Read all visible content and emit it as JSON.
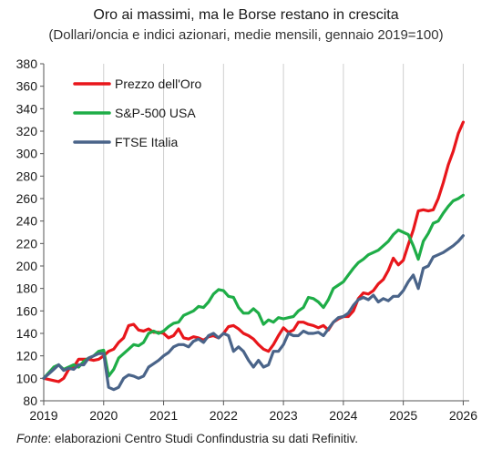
{
  "chart_data": {
    "type": "line",
    "title": "Oro ai massimi, ma le Borse restano in crescita",
    "subtitle": "(Dollari/oncia e indici azionari, medie mensili, gennaio 2019=100)",
    "xlabel": "",
    "ylabel": "",
    "ylim": [
      80,
      380
    ],
    "yticks": [
      80,
      100,
      120,
      140,
      160,
      180,
      200,
      220,
      240,
      260,
      280,
      300,
      320,
      340,
      360,
      380
    ],
    "xlim": [
      2019,
      2026.1
    ],
    "xticks": [
      "2019",
      "2020",
      "2021",
      "2022",
      "2023",
      "2024",
      "2025",
      "2026"
    ],
    "grid": "vertical",
    "legend": "top-left",
    "series": [
      {
        "name": "Prezzo dell'Oro",
        "color": "#e8161b",
        "x": [
          2019.0,
          2019.083,
          2019.167,
          2019.25,
          2019.333,
          2019.417,
          2019.5,
          2019.583,
          2019.667,
          2019.75,
          2019.833,
          2019.917,
          2020.0,
          2020.083,
          2020.167,
          2020.25,
          2020.333,
          2020.417,
          2020.5,
          2020.583,
          2020.667,
          2020.75,
          2020.833,
          2020.917,
          2021.0,
          2021.083,
          2021.167,
          2021.25,
          2021.333,
          2021.417,
          2021.5,
          2021.583,
          2021.667,
          2021.75,
          2021.833,
          2021.917,
          2022.0,
          2022.083,
          2022.167,
          2022.25,
          2022.333,
          2022.417,
          2022.5,
          2022.583,
          2022.667,
          2022.75,
          2022.833,
          2022.917,
          2023.0,
          2023.083,
          2023.167,
          2023.25,
          2023.333,
          2023.417,
          2023.5,
          2023.583,
          2023.667,
          2023.75,
          2023.833,
          2023.917,
          2024.0,
          2024.083,
          2024.167,
          2024.25,
          2024.333,
          2024.417,
          2024.5,
          2024.583,
          2024.667,
          2024.75,
          2024.833,
          2024.917,
          2025.0,
          2025.083,
          2025.167,
          2025.25,
          2025.333,
          2025.417,
          2025.5,
          2025.583,
          2025.667,
          2025.75,
          2025.833,
          2025.917,
          2026.0
        ],
        "values": [
          100,
          99,
          98,
          97,
          100,
          108,
          110,
          117,
          117,
          117,
          116,
          117,
          120,
          124,
          126,
          132,
          136,
          147,
          148,
          143,
          142,
          144,
          141,
          141,
          140,
          136,
          138,
          144,
          136,
          135,
          137,
          136,
          134,
          137,
          138,
          136,
          140,
          146,
          147,
          144,
          140,
          138,
          135,
          130,
          126,
          124,
          130,
          138,
          145,
          141,
          143,
          150,
          150,
          148,
          147,
          145,
          147,
          143,
          150,
          153,
          155,
          155,
          160,
          171,
          176,
          175,
          178,
          184,
          188,
          196,
          207,
          201,
          205,
          219,
          232,
          249,
          250,
          249,
          250,
          260,
          274,
          290,
          302,
          318,
          328
        ]
      },
      {
        "name": "S&P-500 USA",
        "color": "#1ead47",
        "x": [
          2019.0,
          2019.083,
          2019.167,
          2019.25,
          2019.333,
          2019.417,
          2019.5,
          2019.583,
          2019.667,
          2019.75,
          2019.833,
          2019.917,
          2020.0,
          2020.083,
          2020.167,
          2020.25,
          2020.333,
          2020.417,
          2020.5,
          2020.583,
          2020.667,
          2020.75,
          2020.833,
          2020.917,
          2021.0,
          2021.083,
          2021.167,
          2021.25,
          2021.333,
          2021.417,
          2021.5,
          2021.583,
          2021.667,
          2021.75,
          2021.833,
          2021.917,
          2022.0,
          2022.083,
          2022.167,
          2022.25,
          2022.333,
          2022.417,
          2022.5,
          2022.583,
          2022.667,
          2022.75,
          2022.833,
          2022.917,
          2023.0,
          2023.083,
          2023.167,
          2023.25,
          2023.333,
          2023.417,
          2023.5,
          2023.583,
          2023.667,
          2023.75,
          2023.833,
          2023.917,
          2024.0,
          2024.083,
          2024.167,
          2024.25,
          2024.333,
          2024.417,
          2024.5,
          2024.583,
          2024.667,
          2024.75,
          2024.833,
          2024.917,
          2025.0,
          2025.083,
          2025.167,
          2025.25,
          2025.333,
          2025.417,
          2025.5,
          2025.583,
          2025.667,
          2025.75,
          2025.833,
          2025.917,
          2026.0
        ],
        "values": [
          100,
          105,
          110,
          112,
          108,
          110,
          112,
          110,
          115,
          118,
          120,
          124,
          125,
          102,
          108,
          118,
          122,
          126,
          130,
          129,
          132,
          140,
          142,
          140,
          142,
          146,
          149,
          150,
          156,
          158,
          160,
          164,
          163,
          168,
          175,
          179,
          178,
          173,
          172,
          163,
          158,
          158,
          162,
          158,
          148,
          152,
          150,
          154,
          153,
          154,
          155,
          160,
          163,
          172,
          171,
          168,
          163,
          170,
          180,
          183,
          186,
          192,
          198,
          203,
          206,
          210,
          212,
          214,
          218,
          222,
          228,
          232,
          230,
          228,
          218,
          206,
          222,
          229,
          238,
          240,
          247,
          253,
          258,
          260,
          263
        ]
      },
      {
        "name": "FTSE Italia",
        "color": "#4a6489",
        "x": [
          2019.0,
          2019.083,
          2019.167,
          2019.25,
          2019.333,
          2019.417,
          2019.5,
          2019.583,
          2019.667,
          2019.75,
          2019.833,
          2019.917,
          2020.0,
          2020.083,
          2020.167,
          2020.25,
          2020.333,
          2020.417,
          2020.5,
          2020.583,
          2020.667,
          2020.75,
          2020.833,
          2020.917,
          2021.0,
          2021.083,
          2021.167,
          2021.25,
          2021.333,
          2021.417,
          2021.5,
          2021.583,
          2021.667,
          2021.75,
          2021.833,
          2021.917,
          2022.0,
          2022.083,
          2022.167,
          2022.25,
          2022.333,
          2022.417,
          2022.5,
          2022.583,
          2022.667,
          2022.75,
          2022.833,
          2022.917,
          2023.0,
          2023.083,
          2023.167,
          2023.25,
          2023.333,
          2023.417,
          2023.5,
          2023.583,
          2023.667,
          2023.75,
          2023.833,
          2023.917,
          2024.0,
          2024.083,
          2024.167,
          2024.25,
          2024.333,
          2024.417,
          2024.5,
          2024.583,
          2024.667,
          2024.75,
          2024.833,
          2024.917,
          2025.0,
          2025.083,
          2025.167,
          2025.25,
          2025.333,
          2025.417,
          2025.5,
          2025.583,
          2025.667,
          2025.75,
          2025.833,
          2025.917,
          2026.0
        ],
        "values": [
          100,
          104,
          108,
          112,
          107,
          109,
          108,
          112,
          112,
          118,
          120,
          122,
          122,
          92,
          90,
          92,
          100,
          103,
          102,
          100,
          102,
          110,
          113,
          116,
          120,
          123,
          128,
          130,
          130,
          128,
          133,
          135,
          132,
          138,
          140,
          136,
          140,
          138,
          124,
          128,
          124,
          116,
          110,
          116,
          110,
          112,
          124,
          124,
          130,
          140,
          138,
          138,
          142,
          140,
          140,
          141,
          138,
          144,
          150,
          154,
          155,
          158,
          165,
          170,
          172,
          170,
          174,
          168,
          171,
          169,
          173,
          173,
          178,
          186,
          192,
          180,
          198,
          200,
          208,
          210,
          212,
          215,
          218,
          222,
          227
        ]
      }
    ],
    "source_label": "Fonte",
    "source_text": ": elaborazioni Centro Studi Confindustria su dati Refinitiv."
  }
}
